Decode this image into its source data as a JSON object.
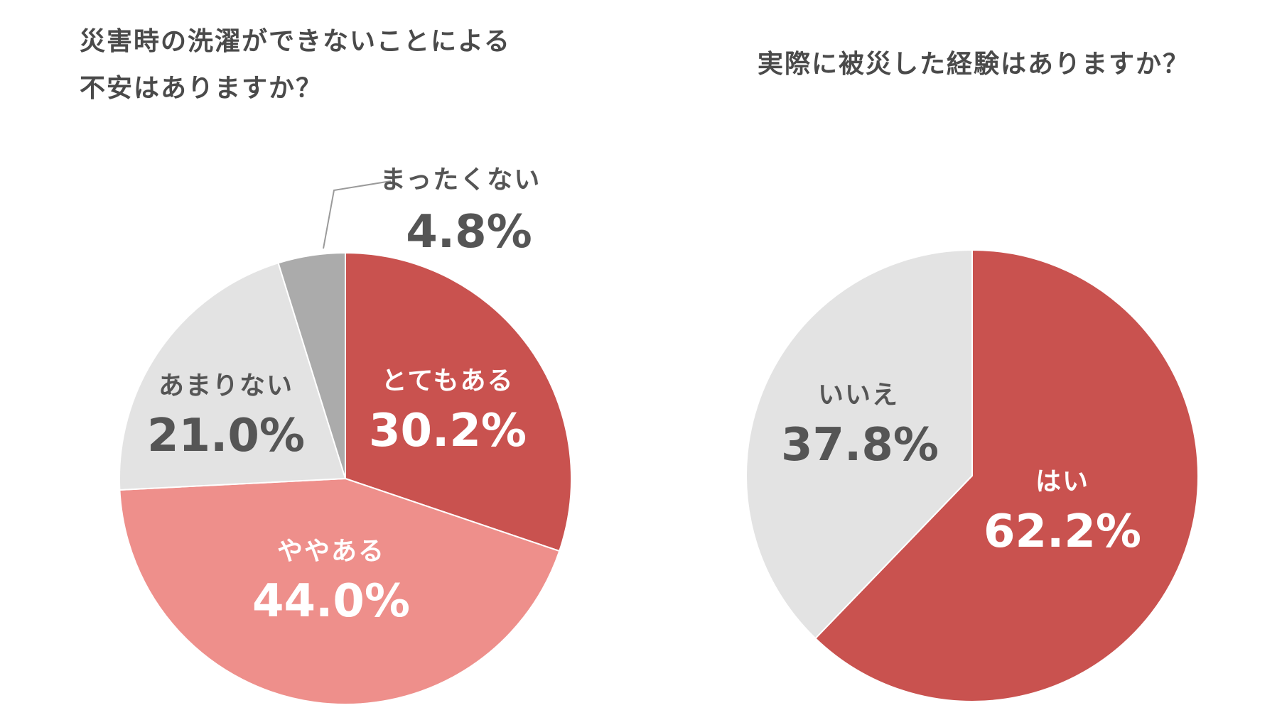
{
  "chart_data": [
    {
      "type": "pie",
      "title": "災害時の洗濯ができないことによる不安はありますか？",
      "title_lines": [
        "災害時の洗濯ができないことによる",
        "不安はありますか？"
      ],
      "unit": "%",
      "slices": [
        {
          "label": "とてもある",
          "value": 30.2,
          "value_label": "30.2%",
          "color": "#c9524f",
          "text_color": "#ffffff"
        },
        {
          "label": "ややある",
          "value": 44.0,
          "value_label": "44.0%",
          "color": "#ee8f8b",
          "text_color": "#ffffff"
        },
        {
          "label": "あまりない",
          "value": 21.0,
          "value_label": "21.0%",
          "color": "#e3e3e3",
          "text_color": "#555555"
        },
        {
          "label": "まったくない",
          "value": 4.8,
          "value_label": "4.8%",
          "color": "#ababab",
          "text_color": "#555555"
        }
      ]
    },
    {
      "type": "pie",
      "title": "実際に被災した経験はありますか？",
      "unit": "%",
      "slices": [
        {
          "label": "はい",
          "value": 62.2,
          "value_label": "62.2%",
          "color": "#c9524f",
          "text_color": "#ffffff"
        },
        {
          "label": "いいえ",
          "value": 37.8,
          "value_label": "37.8%",
          "color": "#e3e3e3",
          "text_color": "#555555"
        }
      ]
    }
  ]
}
